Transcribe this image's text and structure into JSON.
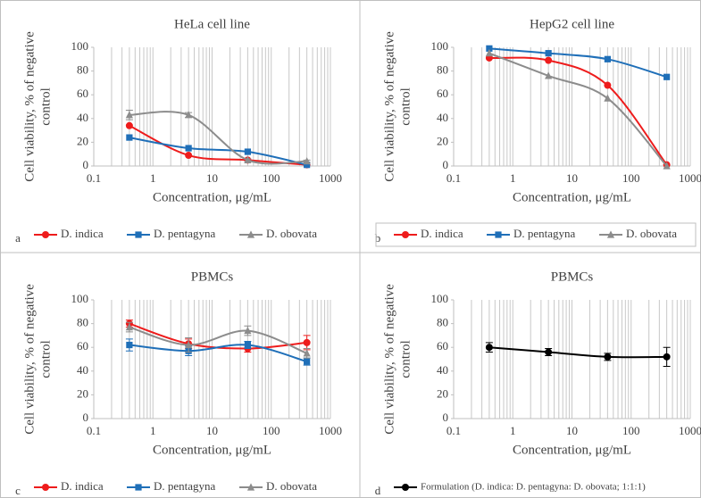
{
  "chart_data": [
    {
      "type": "line",
      "title": "HeLa cell line",
      "panel_label": "a",
      "xlabel": "Concentration, μg/mL",
      "ylabel": [
        "Cell viability, % of negative",
        "control"
      ],
      "xscale": "log",
      "xlim": [
        0.1,
        1000
      ],
      "xticks": [
        0.1,
        1,
        10,
        100,
        1000
      ],
      "ylim": [
        0,
        100
      ],
      "yticks": [
        0,
        20,
        40,
        60,
        80,
        100
      ],
      "grid": "x",
      "smooth": true,
      "legend": "bottom",
      "legend_box": false,
      "x": [
        0.4,
        4,
        40,
        400
      ],
      "series": [
        {
          "name": "D. indica",
          "color": "#ee1c1c",
          "marker": "circle",
          "values": [
            34,
            9,
            5,
            1
          ]
        },
        {
          "name": "D. pentagyna",
          "color": "#1f6fb8",
          "marker": "square",
          "values": [
            24,
            15,
            12,
            1
          ]
        },
        {
          "name": "D. obovata",
          "color": "#8c8c8c",
          "marker": "triangle",
          "values": [
            43,
            43,
            5,
            4
          ],
          "errors": [
            4,
            2,
            1,
            1
          ]
        }
      ]
    },
    {
      "type": "line",
      "title": "HepG2 cell line",
      "panel_label": "b",
      "xlabel": "Concentration, μg/mL",
      "ylabel": [
        "Cell viability, % of negative",
        "control"
      ],
      "xscale": "log",
      "xlim": [
        0.1,
        1000
      ],
      "xticks": [
        0.1,
        1,
        10,
        100,
        1000
      ],
      "ylim": [
        0,
        100
      ],
      "yticks": [
        0,
        20,
        40,
        60,
        80,
        100
      ],
      "grid": "x",
      "smooth": true,
      "legend": "bottom",
      "legend_box": true,
      "x": [
        0.4,
        4,
        40,
        400
      ],
      "series": [
        {
          "name": "D. indica",
          "color": "#ee1c1c",
          "marker": "circle",
          "values": [
            91,
            89,
            68,
            1
          ]
        },
        {
          "name": "D. pentagyna",
          "color": "#1f6fb8",
          "marker": "square",
          "values": [
            99,
            95,
            90,
            75
          ]
        },
        {
          "name": "D. obovata",
          "color": "#8c8c8c",
          "marker": "triangle",
          "values": [
            95,
            76,
            57,
            0
          ]
        }
      ]
    },
    {
      "type": "line",
      "title": "PBMCs",
      "panel_label": "c",
      "xlabel": "Concentration, μg/mL",
      "ylabel": [
        "Cell viability, % of negative",
        "control"
      ],
      "xscale": "log",
      "xlim": [
        0.1,
        1000
      ],
      "xticks": [
        0.1,
        1,
        10,
        100,
        1000
      ],
      "ylim": [
        0,
        100
      ],
      "yticks": [
        0,
        20,
        40,
        60,
        80,
        100
      ],
      "grid": "x",
      "smooth": true,
      "legend": "bottom",
      "legend_box": false,
      "x": [
        0.4,
        4,
        40,
        400
      ],
      "series": [
        {
          "name": "D. indica",
          "color": "#ee1c1c",
          "marker": "circle",
          "values": [
            80,
            63,
            59,
            64
          ],
          "errors": [
            3,
            4,
            3,
            6
          ]
        },
        {
          "name": "D. pentagyna",
          "color": "#1f6fb8",
          "marker": "square",
          "values": [
            62,
            57,
            62,
            48
          ],
          "errors": [
            5,
            4,
            3,
            3
          ]
        },
        {
          "name": "D. obovata",
          "color": "#8c8c8c",
          "marker": "triangle",
          "values": [
            77,
            62,
            74,
            55
          ],
          "errors": [
            4,
            6,
            4,
            4
          ]
        }
      ]
    },
    {
      "type": "line",
      "title": "PBMCs",
      "panel_label": "d",
      "xlabel": "Concentration, μg/mL",
      "ylabel": [
        "Cell viability, % of negative",
        "control"
      ],
      "xscale": "log",
      "xlim": [
        0.1,
        1000
      ],
      "xticks": [
        0.1,
        1,
        10,
        100,
        1000
      ],
      "ylim": [
        0,
        100
      ],
      "yticks": [
        0,
        20,
        40,
        60,
        80,
        100
      ],
      "grid": "x",
      "smooth": true,
      "legend": "bottom",
      "legend_box": false,
      "x": [
        0.4,
        4,
        40,
        400
      ],
      "series": [
        {
          "name": "Formulation (D. indica: D. pentagyna: D. obovata; 1:1:1)",
          "color": "#000000",
          "marker": "circle",
          "values": [
            60,
            56,
            52,
            52
          ],
          "errors": [
            4,
            3,
            3,
            8
          ]
        }
      ]
    }
  ]
}
